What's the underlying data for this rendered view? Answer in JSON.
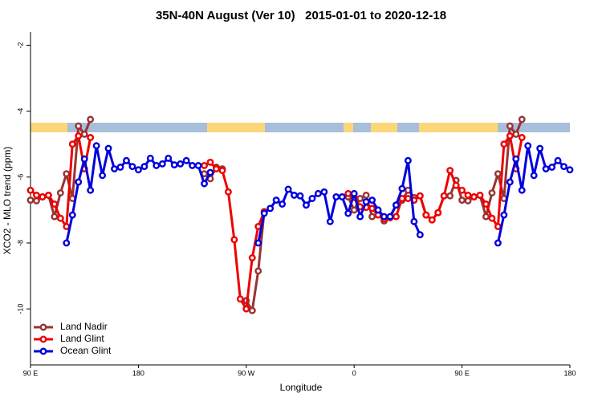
{
  "chart_data": {
    "type": "line",
    "title": "35N-40N August (Ver 10)   2015-01-01 to 2020-12-18",
    "xlabel": "Longitude",
    "ylabel": "XCO2 - MLO trend (ppm)",
    "x": [
      90,
      95,
      100,
      105,
      110,
      115,
      120,
      125,
      130,
      135,
      140,
      145,
      150,
      155,
      160,
      165,
      170,
      175,
      180,
      185,
      190,
      195,
      200,
      205,
      210,
      215,
      220,
      225,
      230,
      235,
      240,
      245,
      250,
      255,
      260,
      265,
      270,
      275,
      280,
      285,
      290,
      295,
      300,
      305,
      310,
      315,
      320,
      325,
      330,
      335,
      340,
      345,
      350,
      355,
      360,
      365,
      370,
      375,
      380,
      385,
      390,
      395,
      400,
      405,
      410,
      415,
      420,
      425,
      430,
      435,
      440,
      445,
      450,
      455,
      460,
      465,
      470,
      475,
      480,
      485,
      490,
      495,
      500,
      505,
      510,
      515,
      520,
      525,
      530,
      535,
      540
    ],
    "xlim": [
      90,
      540
    ],
    "xticks": [
      {
        "value": 90,
        "label": "90 E"
      },
      180,
      {
        "value": 270,
        "label": "90 W"
      },
      {
        "value": 360,
        "label": "0"
      },
      {
        "value": 450,
        "label": "90 E"
      },
      {
        "value": 540,
        "label": "180"
      }
    ],
    "ylim": [
      -11.7,
      -1.6
    ],
    "yticks": [
      -2,
      -4,
      -6,
      -8,
      -10
    ],
    "legend": "bottom-left",
    "series": [
      {
        "name": "Land Nadir",
        "color": "#993333",
        "values": [
          -6.7,
          -6.72,
          -6.6,
          -6.55,
          -7.2,
          -6.48,
          -5.9,
          -6.65,
          -4.45,
          -4.7,
          -4.25,
          null,
          null,
          null,
          null,
          null,
          null,
          null,
          null,
          null,
          null,
          null,
          null,
          null,
          null,
          null,
          null,
          null,
          null,
          -5.9,
          -6.05,
          -5.7,
          -5.75,
          null,
          null,
          null,
          -9.75,
          -10.05,
          -8.85,
          -7.05,
          null,
          null,
          null,
          null,
          null,
          null,
          null,
          null,
          null,
          null,
          null,
          null,
          null,
          -6.6,
          -7.0,
          -6.65,
          -6.55,
          -7.2,
          -7.1,
          -7.33,
          -7.23,
          -6.85,
          -6.7,
          -6.4,
          -6.62,
          -6.57,
          -7.15,
          -7.3,
          -7.08,
          -6.57,
          -6.57,
          -6.1,
          -6.7,
          -6.72,
          -6.6,
          -6.55,
          -7.2,
          -6.48,
          -5.9,
          -6.65,
          -4.45,
          -4.7,
          -4.25,
          null,
          null,
          null,
          null,
          null,
          null,
          null,
          null
        ]
      },
      {
        "name": "Land Glint",
        "color": "#ee0000",
        "values": [
          -6.4,
          -6.55,
          -6.6,
          -6.55,
          -6.82,
          -7.25,
          -7.5,
          -5.0,
          -4.75,
          -5.75,
          -4.8,
          null,
          null,
          null,
          null,
          null,
          null,
          null,
          null,
          null,
          null,
          null,
          null,
          null,
          null,
          null,
          null,
          null,
          null,
          -5.65,
          -5.55,
          -5.75,
          -5.8,
          -6.45,
          -7.9,
          -9.7,
          -10.0,
          -8.45,
          -7.5,
          -7.05,
          null,
          null,
          null,
          null,
          null,
          null,
          null,
          null,
          null,
          null,
          null,
          null,
          null,
          -6.5,
          -6.62,
          -6.9,
          -6.92,
          -6.95,
          -7.15,
          -7.27,
          -7.23,
          -7.2,
          -6.65,
          -6.65,
          -6.7,
          -6.57,
          -7.15,
          -7.3,
          -7.08,
          -6.57,
          -5.8,
          -6.25,
          -6.4,
          -6.55,
          -6.6,
          -6.55,
          -6.82,
          -7.25,
          -7.5,
          -5.0,
          -4.75,
          -5.75,
          -4.8,
          null,
          null,
          null,
          null,
          null,
          null,
          null,
          null
        ]
      },
      {
        "name": "Ocean Glint",
        "color": "#0000dd",
        "values": [
          null,
          null,
          null,
          null,
          null,
          null,
          -8.0,
          -7.15,
          -6.15,
          -5.45,
          -6.4,
          -5.05,
          -5.95,
          -5.13,
          -5.75,
          -5.7,
          -5.5,
          -5.68,
          -5.78,
          -5.68,
          -5.43,
          -5.65,
          -5.6,
          -5.43,
          -5.63,
          -5.6,
          -5.5,
          -5.65,
          -5.65,
          -6.2,
          -5.86,
          null,
          null,
          null,
          null,
          null,
          null,
          null,
          -8.0,
          -7.1,
          -6.95,
          -6.7,
          -6.82,
          -6.37,
          -6.55,
          -6.57,
          -6.85,
          -6.65,
          -6.5,
          -6.45,
          -7.35,
          -6.6,
          -6.6,
          -7.1,
          -6.5,
          -7.2,
          -6.75,
          -6.7,
          -7.0,
          -7.2,
          -7.2,
          -6.85,
          -6.35,
          -5.5,
          -7.35,
          -7.75,
          null,
          null,
          null,
          null,
          null,
          null,
          null,
          null,
          null,
          null,
          null,
          null,
          -8.0,
          -7.15,
          -6.15,
          -5.45,
          -6.4,
          -5.05,
          -5.95,
          -5.13,
          -5.75,
          -5.7,
          -5.5,
          -5.68,
          -5.78
        ]
      }
    ]
  }
}
